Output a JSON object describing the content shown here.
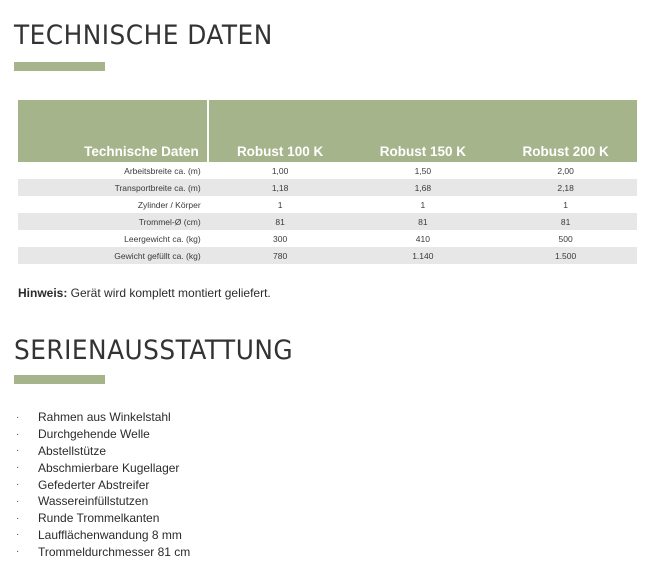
{
  "section1": {
    "title": "TECHNISCHE DATEN"
  },
  "table": {
    "header": [
      "Technische Daten",
      "Robust 100 K",
      "Robust 150 K",
      "Robust 200 K"
    ],
    "rows": [
      [
        "Arbeitsbreite ca. (m)",
        "1,00",
        "1,50",
        "2,00"
      ],
      [
        "Transportbreite ca. (m)",
        "1,18",
        "1,68",
        "2,18"
      ],
      [
        "Zylinder / Körper",
        "1",
        "1",
        "1"
      ],
      [
        "Trommel-Ø (cm)",
        "81",
        "81",
        "81"
      ],
      [
        "Leergewicht ca. (kg)",
        "300",
        "410",
        "500"
      ],
      [
        "Gewicht gefüllt ca. (kg)",
        "780",
        "1.140",
        "1.500"
      ]
    ]
  },
  "note": {
    "label": "Hinweis:",
    "text": " Gerät wird komplett montiert geliefert."
  },
  "section2": {
    "title": "SERIENAUSSTATTUNG"
  },
  "features": [
    "Rahmen aus Winkelstahl",
    "Durchgehende Welle",
    "Abstellstütze",
    "Abschmierbare Kugellager",
    "Gefederter Abstreifer",
    "Wassereinfüllstutzen",
    "Runde Trommelkanten",
    "Laufflächenwandung 8 mm",
    "Trommeldurchmesser 81 cm"
  ],
  "bullet": "·",
  "colors": {
    "accent": "#a6b48c",
    "row_alt": "#e7e7e7",
    "text": "#2b2b2b"
  }
}
